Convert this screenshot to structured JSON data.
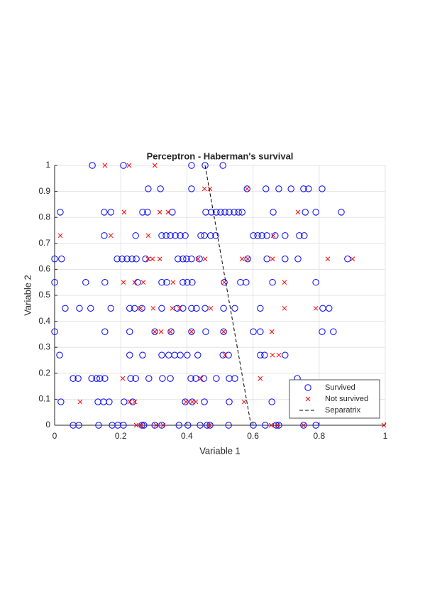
{
  "chart_data": {
    "type": "scatter",
    "title": "Perceptron - Haberman's survival",
    "xlabel": "Variable 1",
    "ylabel": "Variable 2",
    "xlim": [
      0,
      1
    ],
    "ylim": [
      0,
      1
    ],
    "xticks": [
      0,
      0.2,
      0.4,
      0.6,
      0.8,
      1
    ],
    "yticks": [
      0,
      0.1,
      0.2,
      0.3,
      0.4,
      0.5,
      0.6,
      0.7,
      0.8,
      0.9,
      1
    ],
    "grid": true,
    "legend_position": "southeast",
    "series": [
      {
        "name": "Survived",
        "color": "#0000ff",
        "marker": "o",
        "x": [
          0.114,
          0.208,
          0.414,
          0.455,
          0.509,
          0.283,
          0.32,
          0.414,
          0.582,
          0.639,
          0.678,
          0.715,
          0.753,
          0.768,
          0.809,
          0.017,
          0.15,
          0.17,
          0.266,
          0.281,
          0.356,
          0.457,
          0.474,
          0.489,
          0.502,
          0.515,
          0.528,
          0.543,
          0.556,
          0.567,
          0.661,
          0.758,
          0.79,
          0.867,
          0.15,
          0.245,
          0.324,
          0.337,
          0.35,
          0.365,
          0.38,
          0.395,
          0.442,
          0.453,
          0.472,
          0.487,
          0.601,
          0.614,
          0.627,
          0.642,
          0.667,
          0.697,
          0.74,
          0.755,
          0.0,
          0.021,
          0.189,
          0.204,
          0.219,
          0.234,
          0.247,
          0.275,
          0.373,
          0.388,
          0.399,
          0.414,
          0.438,
          0.584,
          0.642,
          0.697,
          0.736,
          0.886,
          0.0,
          0.094,
          0.152,
          0.251,
          0.324,
          0.339,
          0.388,
          0.401,
          0.416,
          0.513,
          0.562,
          0.579,
          0.659,
          0.79,
          0.032,
          0.075,
          0.109,
          0.17,
          0.227,
          0.242,
          0.264,
          0.324,
          0.371,
          0.388,
          0.414,
          0.429,
          0.455,
          0.511,
          0.545,
          0.622,
          0.811,
          0.83,
          0.0,
          0.152,
          0.227,
          0.303,
          0.352,
          0.414,
          0.457,
          0.511,
          0.601,
          0.622,
          0.809,
          0.843,
          0.015,
          0.227,
          0.266,
          0.324,
          0.345,
          0.363,
          0.38,
          0.401,
          0.433,
          0.509,
          0.526,
          0.622,
          0.635,
          0.697,
          0.056,
          0.071,
          0.112,
          0.127,
          0.137,
          0.152,
          0.23,
          0.245,
          0.285,
          0.326,
          0.35,
          0.412,
          0.427,
          0.451,
          0.489,
          0.528,
          0.545,
          0.734,
          0.019,
          0.131,
          0.148,
          0.165,
          0.21,
          0.236,
          0.395,
          0.416,
          0.453,
          0.528,
          0.657,
          0.056,
          0.073,
          0.133,
          0.174,
          0.191,
          0.208,
          0.264,
          0.27,
          0.303,
          0.324,
          0.376,
          0.403,
          0.44,
          0.461,
          0.47,
          0.526,
          0.601,
          0.637,
          0.67,
          0.678,
          0.753,
          0.79
        ],
        "values": [
          1,
          1,
          1,
          1,
          1,
          0.91,
          0.91,
          0.91,
          0.91,
          0.91,
          0.91,
          0.91,
          0.91,
          0.91,
          0.91,
          0.82,
          0.82,
          0.82,
          0.82,
          0.82,
          0.82,
          0.82,
          0.82,
          0.82,
          0.82,
          0.82,
          0.82,
          0.82,
          0.82,
          0.82,
          0.82,
          0.82,
          0.82,
          0.82,
          0.73,
          0.73,
          0.73,
          0.73,
          0.73,
          0.73,
          0.73,
          0.73,
          0.73,
          0.73,
          0.73,
          0.73,
          0.73,
          0.73,
          0.73,
          0.73,
          0.73,
          0.73,
          0.73,
          0.73,
          0.64,
          0.64,
          0.64,
          0.64,
          0.64,
          0.64,
          0.64,
          0.64,
          0.64,
          0.64,
          0.64,
          0.64,
          0.64,
          0.64,
          0.64,
          0.64,
          0.64,
          0.64,
          0.55,
          0.55,
          0.55,
          0.55,
          0.55,
          0.55,
          0.55,
          0.55,
          0.55,
          0.55,
          0.55,
          0.55,
          0.55,
          0.55,
          0.45,
          0.45,
          0.45,
          0.45,
          0.45,
          0.45,
          0.45,
          0.45,
          0.45,
          0.45,
          0.45,
          0.45,
          0.45,
          0.45,
          0.45,
          0.45,
          0.45,
          0.45,
          0.36,
          0.36,
          0.36,
          0.36,
          0.36,
          0.36,
          0.36,
          0.36,
          0.36,
          0.36,
          0.36,
          0.36,
          0.27,
          0.27,
          0.27,
          0.27,
          0.27,
          0.27,
          0.27,
          0.27,
          0.27,
          0.27,
          0.27,
          0.27,
          0.27,
          0.27,
          0.18,
          0.18,
          0.18,
          0.18,
          0.18,
          0.18,
          0.18,
          0.18,
          0.18,
          0.18,
          0.18,
          0.18,
          0.18,
          0.18,
          0.18,
          0.18,
          0.18,
          0.18,
          0.09,
          0.09,
          0.09,
          0.09,
          0.09,
          0.09,
          0.09,
          0.09,
          0.09,
          0.09,
          0.09,
          0,
          0,
          0,
          0,
          0,
          0,
          0,
          0,
          0,
          0,
          0,
          0,
          0,
          0,
          0,
          0,
          0,
          0,
          0,
          0,
          0,
          0
        ]
      },
      {
        "name": "Not survived",
        "color": "#ff0000",
        "marker": "x",
        "x": [
          0.152,
          0.225,
          0.303,
          0.453,
          0.47,
          0.582,
          0.21,
          0.318,
          0.343,
          0.736,
          0.017,
          0.17,
          0.283,
          0.661,
          0.283,
          0.296,
          0.318,
          0.433,
          0.455,
          0.567,
          0.584,
          0.659,
          0.826,
          0.901,
          0.208,
          0.242,
          0.268,
          0.358,
          0.513,
          0.695,
          0.26,
          0.298,
          0.356,
          0.378,
          0.472,
          0.695,
          0.79,
          0.303,
          0.322,
          0.35,
          0.414,
          0.511,
          0.657,
          0.515,
          0.659,
          0.678,
          0.206,
          0.442,
          0.622,
          0.077,
          0.227,
          0.242,
          0.397,
          0.416,
          0.427,
          0.573,
          0.247,
          0.262,
          0.307,
          0.328,
          0.468,
          0.655,
          0.674,
          0.753,
          0.996
        ],
        "values": [
          1,
          1,
          1,
          0.91,
          0.91,
          0.91,
          0.82,
          0.82,
          0.82,
          0.82,
          0.73,
          0.73,
          0.73,
          0.73,
          0.64,
          0.64,
          0.64,
          0.64,
          0.64,
          0.64,
          0.64,
          0.64,
          0.64,
          0.64,
          0.55,
          0.55,
          0.55,
          0.55,
          0.55,
          0.55,
          0.45,
          0.45,
          0.45,
          0.45,
          0.45,
          0.45,
          0.45,
          0.36,
          0.36,
          0.36,
          0.36,
          0.36,
          0.36,
          0.27,
          0.27,
          0.27,
          0.18,
          0.18,
          0.18,
          0.09,
          0.09,
          0.09,
          0.09,
          0.09,
          0.09,
          0.09,
          0,
          0,
          0,
          0,
          0,
          0,
          0,
          0,
          0
        ]
      },
      {
        "name": "Separatrix",
        "color": "#000000",
        "marker": "dashed-line",
        "x": [
          0.455,
          0.594
        ],
        "values": [
          1,
          0
        ]
      }
    ]
  }
}
